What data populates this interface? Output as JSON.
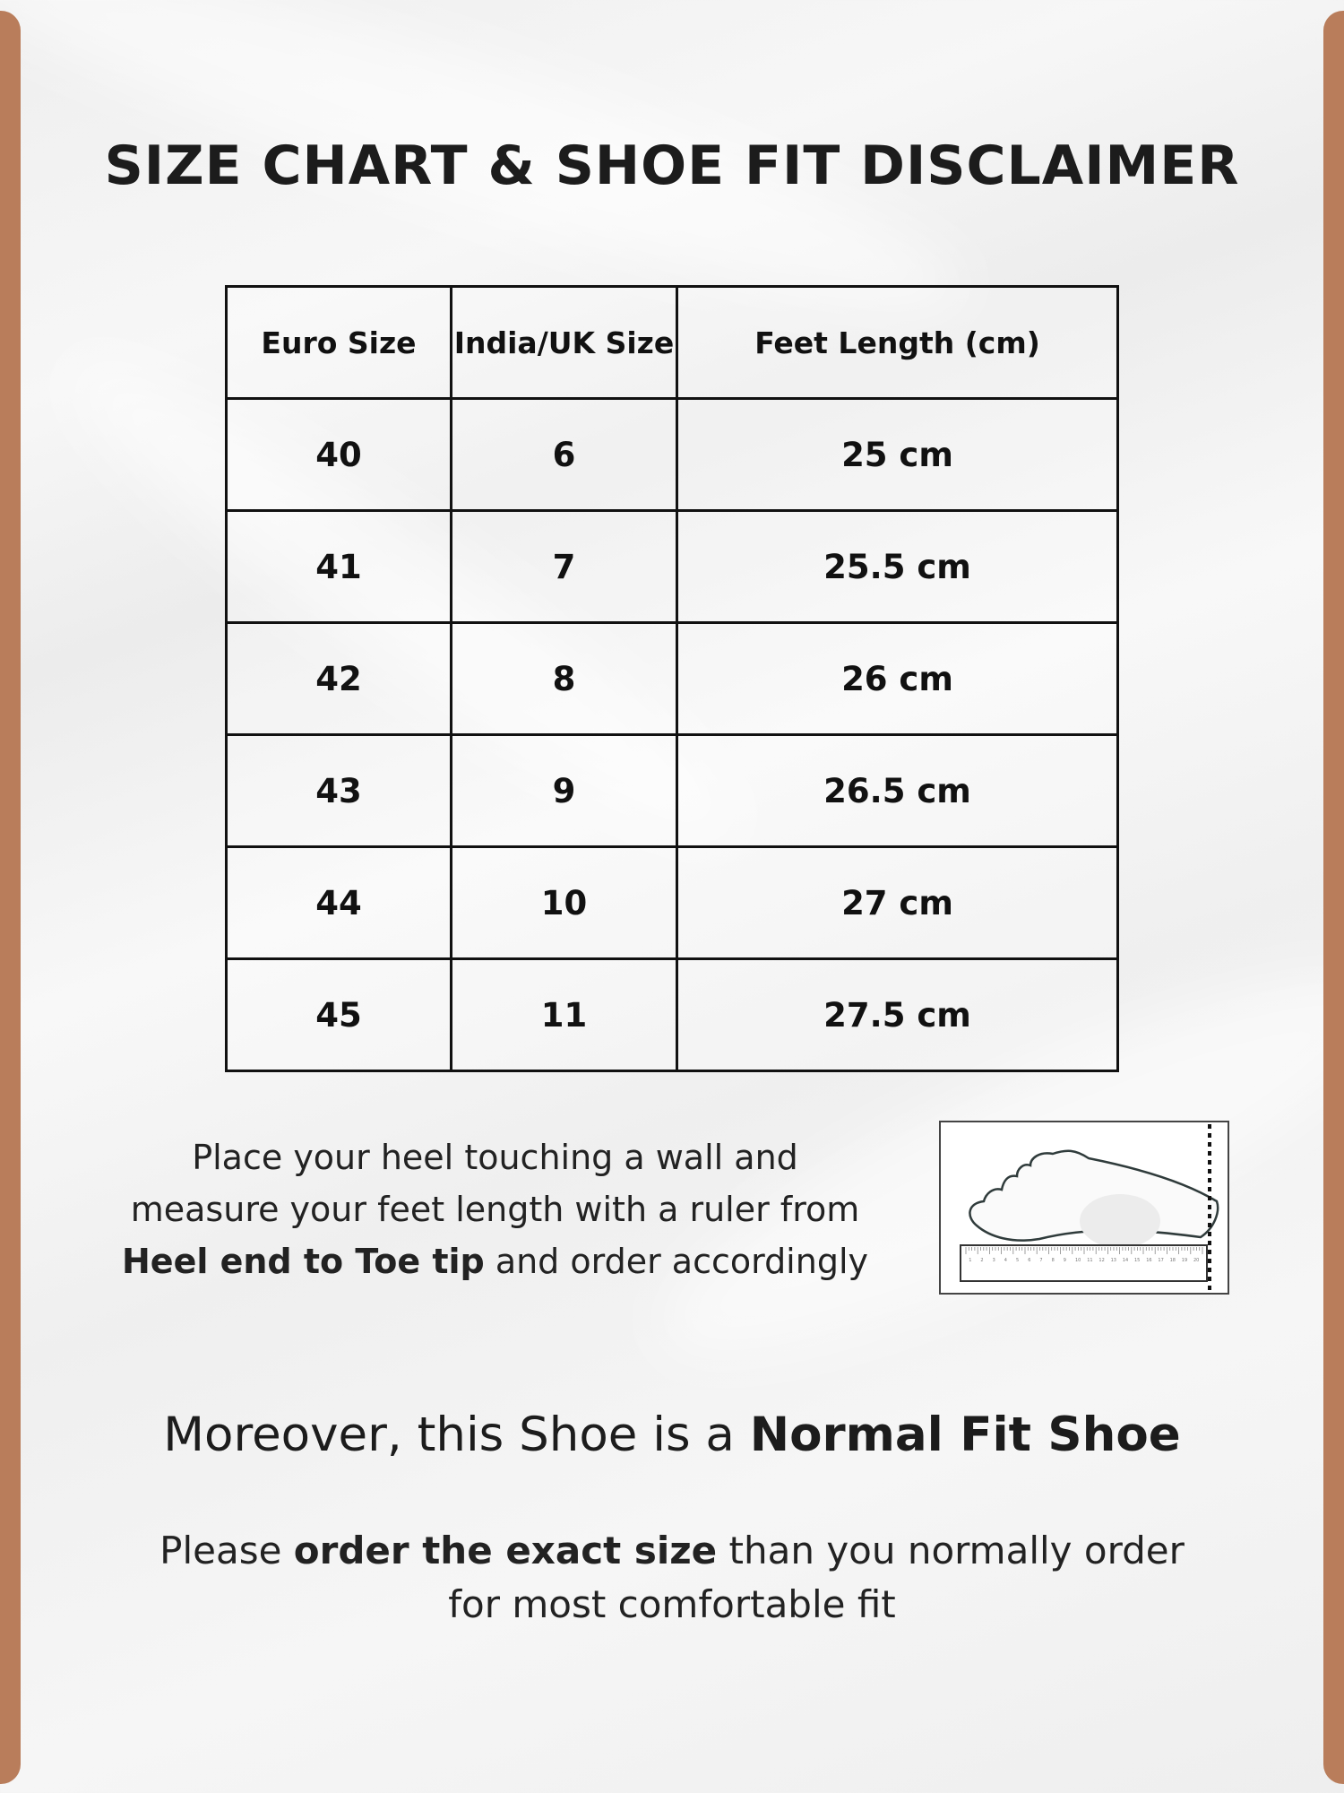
{
  "title": "SIZE CHART & SHOE FIT DISCLAIMER",
  "colors": {
    "accent_bar": "#b97d5b",
    "background": "#f2f2f2",
    "text": "#1a1a1a"
  },
  "table": {
    "headers": [
      "Euro Size",
      "India/UK Size",
      "Feet Length (cm)"
    ],
    "rows": [
      [
        "40",
        "6",
        "25 cm"
      ],
      [
        "41",
        "7",
        "25.5 cm"
      ],
      [
        "42",
        "8",
        "26 cm"
      ],
      [
        "43",
        "9",
        "26.5 cm"
      ],
      [
        "44",
        "10",
        "27 cm"
      ],
      [
        "45",
        "11",
        "27.5 cm"
      ]
    ]
  },
  "instructions": {
    "line1": "Place your heel touching a wall and",
    "line2": "measure your feet length with a ruler from",
    "bold": "Heel end to Toe tip",
    "line3_rest": " and order accordingly"
  },
  "illustration": {
    "icon": "foot-on-ruler-icon",
    "ruler_marks": [
      "1",
      "2",
      "3",
      "4",
      "5",
      "6",
      "7",
      "8",
      "9",
      "10",
      "11",
      "12",
      "13",
      "14",
      "15",
      "16",
      "17",
      "18",
      "19",
      "20"
    ]
  },
  "fit": {
    "prefix": "Moreover, this Shoe is a ",
    "bold": "Normal Fit Shoe"
  },
  "advice": {
    "prefix": "Please ",
    "bold": "order the exact size",
    "suffix": " than you normally order",
    "line2": "for most comfortable fit"
  }
}
